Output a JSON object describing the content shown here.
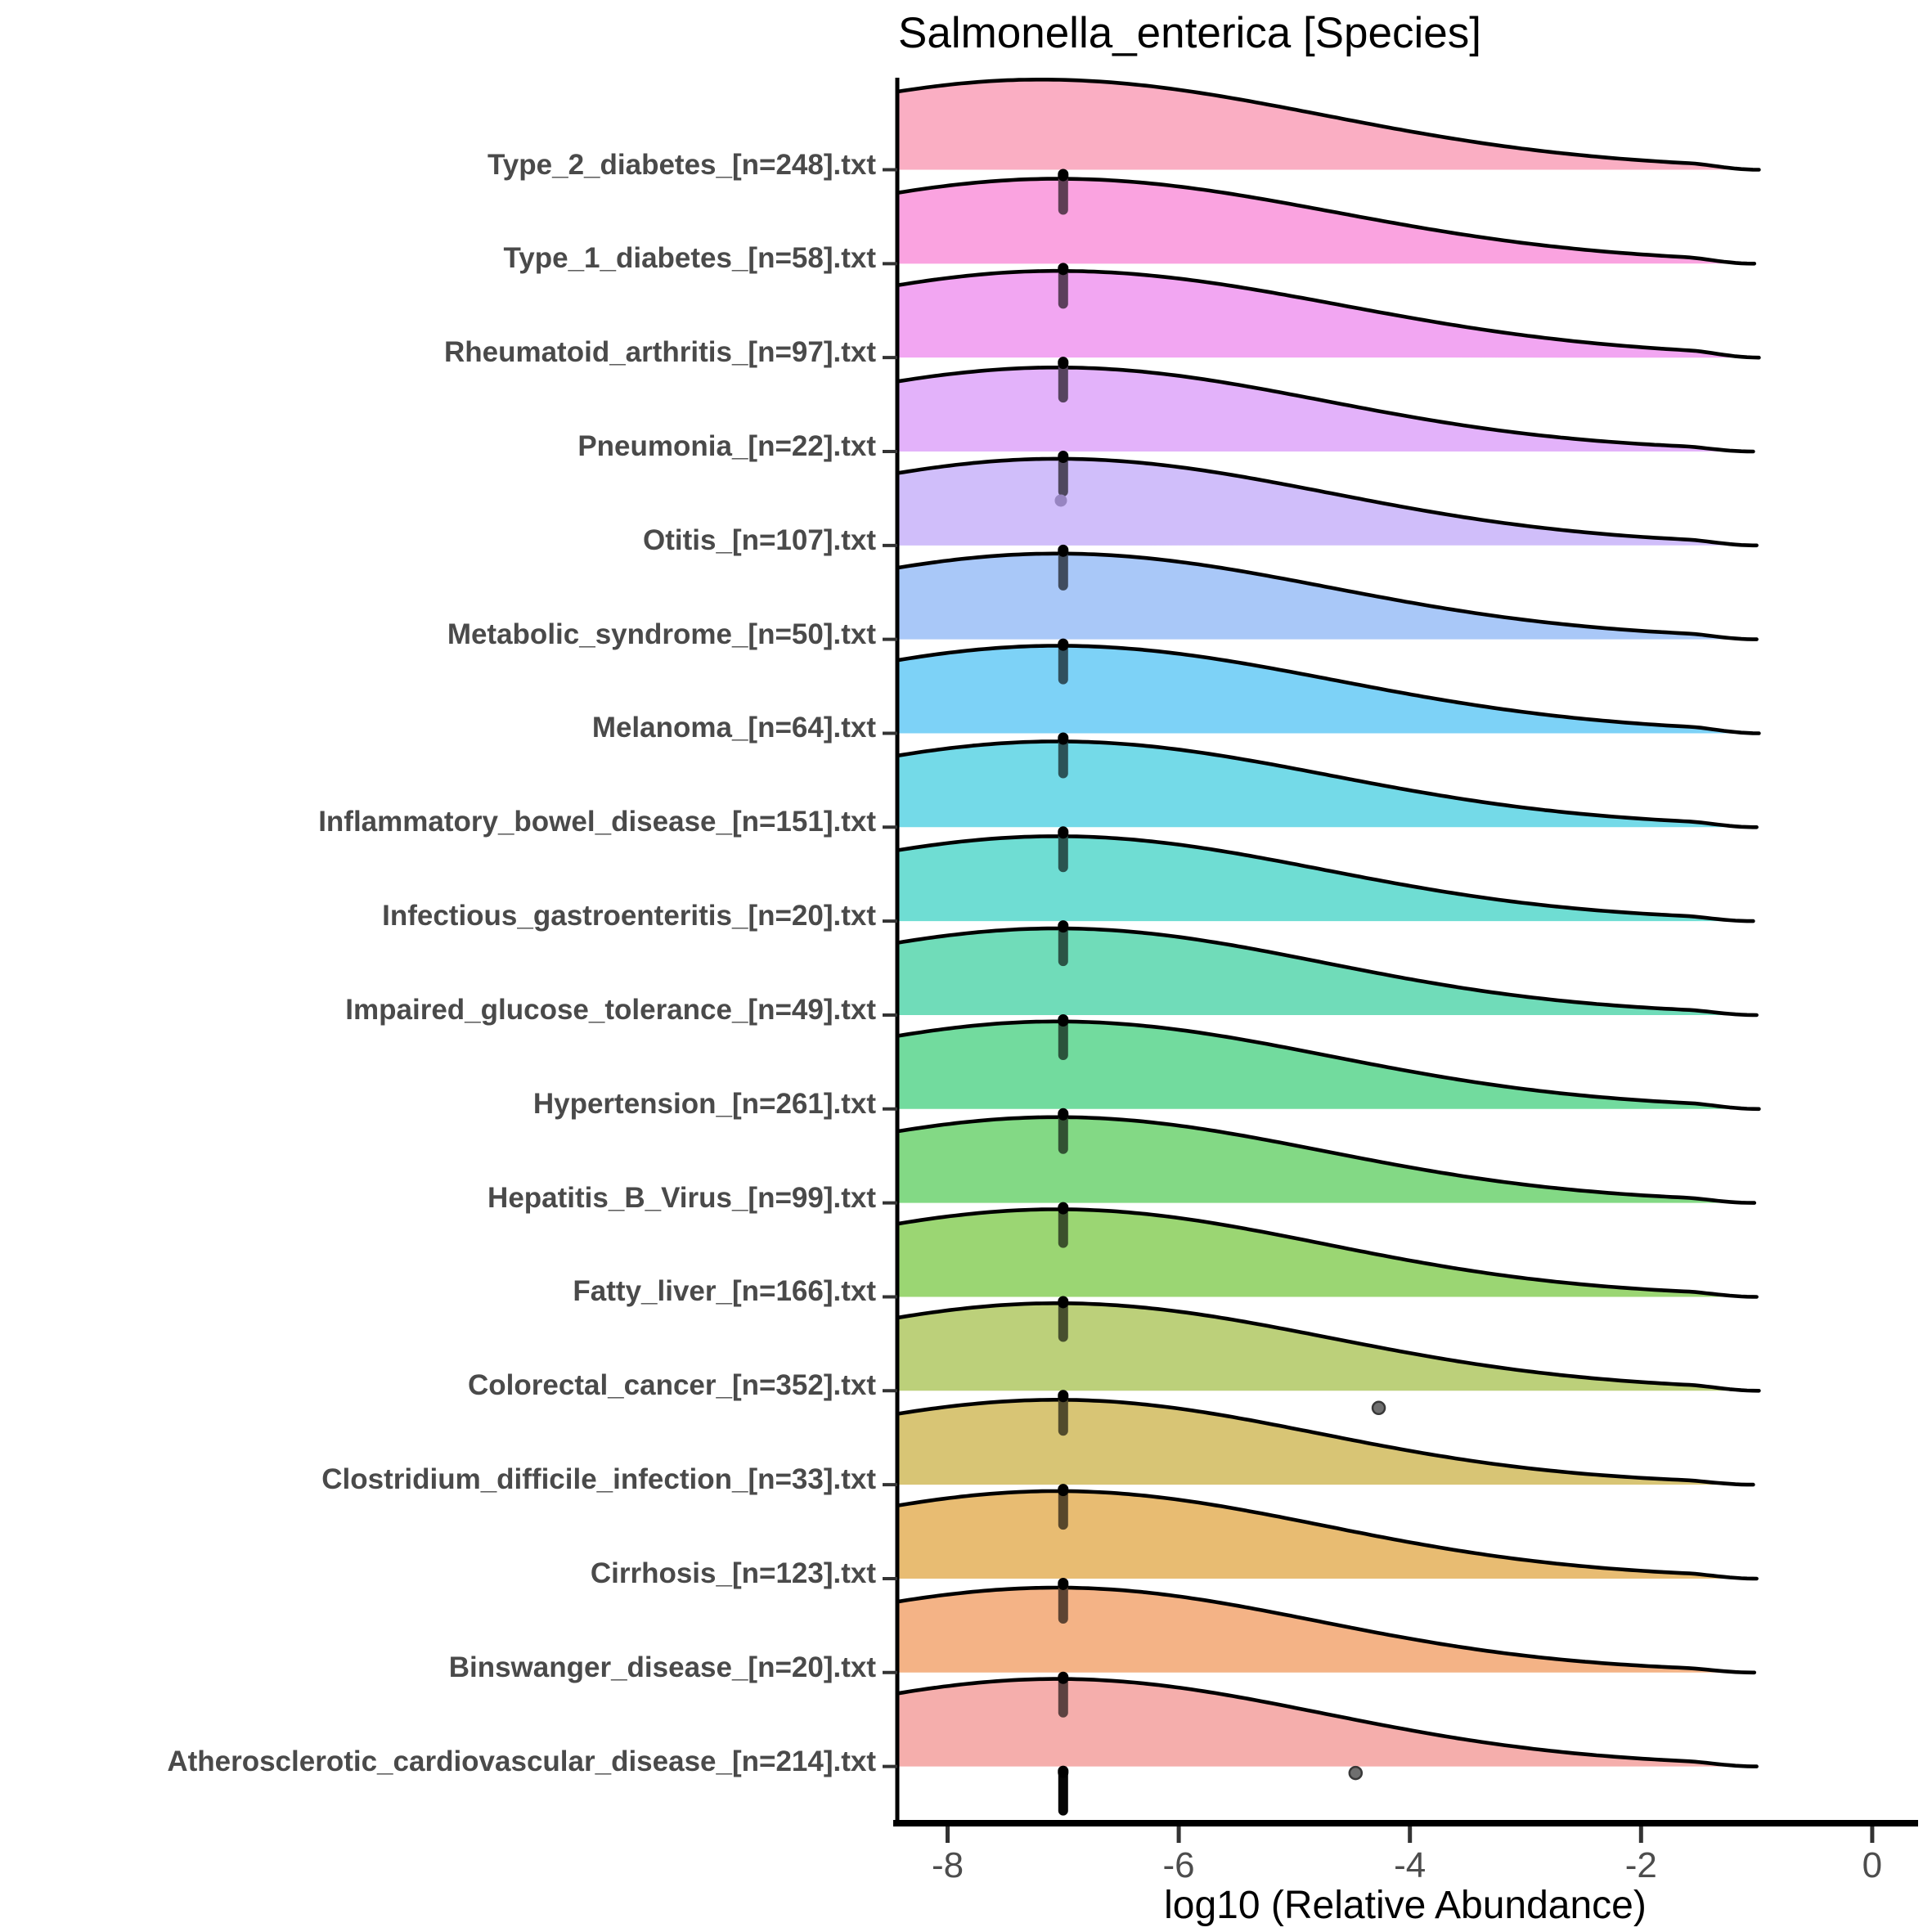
{
  "title": "Salmonella_enterica [Species]",
  "chart_data": {
    "type": "ridgeline",
    "title": "Salmonella_enterica [Species]",
    "xlabel": "log10 (Relative Abundance)",
    "x_ticks": [
      -8,
      -6,
      -4,
      -2,
      0
    ],
    "x_range": [
      -8.43,
      0.32
    ],
    "y_axis": "cohort files (disease_[n=samples].txt)",
    "grid": "off",
    "legend": "none",
    "fill_alpha": 0.6,
    "floor_marker_x": -7,
    "rows": [
      {
        "label": "Type_2_diabetes_[n=248].txt",
        "n": 248,
        "fill": "#F7789B",
        "peak_x": -7.2,
        "sigma_left": 2.3,
        "sigma_right": 2.45,
        "height": 1.03,
        "end_x": -0.98,
        "floor_points": true,
        "outliers": []
      },
      {
        "label": "Type_1_diabetes_[n=58].txt",
        "n": 58,
        "fill": "#F766CB",
        "peak_x": -7.05,
        "sigma_left": 2.3,
        "sigma_right": 2.4,
        "height": 0.97,
        "end_x": -1.02,
        "floor_points": true,
        "outliers": []
      },
      {
        "label": "Rheumatoid_arthritis_[n=97].txt",
        "n": 97,
        "fill": "#E96BE9",
        "peak_x": -7.05,
        "sigma_left": 2.3,
        "sigma_right": 2.45,
        "height": 0.99,
        "end_x": -0.98,
        "floor_points": true,
        "outliers": []
      },
      {
        "label": "Pneumonia_[n=22].txt",
        "n": 22,
        "fill": "#D07FF7",
        "peak_x": -7.05,
        "sigma_left": 2.3,
        "sigma_right": 2.3,
        "height": 0.96,
        "end_x": -1.03,
        "floor_points": true,
        "outliers": [
          {
            "x": -7.02,
            "dy": 60,
            "covered": true
          }
        ]
      },
      {
        "label": "Otitis_[n=107].txt",
        "n": 107,
        "fill": "#B193F7",
        "peak_x": -7.05,
        "sigma_left": 2.3,
        "sigma_right": 2.35,
        "height": 0.99,
        "end_x": -1.0,
        "floor_points": true,
        "outliers": []
      },
      {
        "label": "Metabolic_syndrome_[n=50].txt",
        "n": 50,
        "fill": "#70A3F3",
        "peak_x": -7.05,
        "sigma_left": 2.3,
        "sigma_right": 2.35,
        "height": 0.98,
        "end_x": -1.0,
        "floor_points": true,
        "outliers": []
      },
      {
        "label": "Melanoma_[n=64].txt",
        "n": 64,
        "fill": "#26B4F2",
        "peak_x": -7.05,
        "sigma_left": 2.3,
        "sigma_right": 2.4,
        "height": 1.0,
        "end_x": -0.98,
        "floor_points": true,
        "outliers": []
      },
      {
        "label": "Inflammatory_bowel_disease_[n=151].txt",
        "n": 151,
        "fill": "#17C1D9",
        "peak_x": -7.05,
        "sigma_left": 2.3,
        "sigma_right": 2.35,
        "height": 0.98,
        "end_x": -1.0,
        "floor_points": true,
        "outliers": []
      },
      {
        "label": "Infectious_gastroenteritis_[n=20].txt",
        "n": 20,
        "fill": "#0FC6B6",
        "peak_x": -7.05,
        "sigma_left": 2.3,
        "sigma_right": 2.3,
        "height": 0.97,
        "end_x": -1.03,
        "floor_points": true,
        "outliers": []
      },
      {
        "label": "Impaired_glucose_tolerance_[n=49].txt",
        "n": 49,
        "fill": "#11C58A",
        "peak_x": -7.05,
        "sigma_left": 2.3,
        "sigma_right": 2.3,
        "height": 0.99,
        "end_x": -1.0,
        "floor_points": true,
        "outliers": []
      },
      {
        "label": "Hypertension_[n=261].txt",
        "n": 261,
        "fill": "#14C35D",
        "peak_x": -7.05,
        "sigma_left": 2.3,
        "sigma_right": 2.35,
        "height": 1.0,
        "end_x": -0.98,
        "floor_points": true,
        "outliers": []
      },
      {
        "label": "Hepatitis_B_Virus_[n=99].txt",
        "n": 99,
        "fill": "#30C034",
        "peak_x": -7.05,
        "sigma_left": 2.3,
        "sigma_right": 2.3,
        "height": 0.98,
        "end_x": -1.02,
        "floor_points": true,
        "outliers": []
      },
      {
        "label": "Fatty_liver_[n=166].txt",
        "n": 166,
        "fill": "#58BA15",
        "peak_x": -7.05,
        "sigma_left": 2.3,
        "sigma_right": 2.3,
        "height": 1.0,
        "end_x": -1.0,
        "floor_points": true,
        "outliers": []
      },
      {
        "label": "Colorectal_cancer_[n=352].txt",
        "n": 352,
        "fill": "#8FB121",
        "peak_x": -7.05,
        "sigma_left": 2.3,
        "sigma_right": 2.35,
        "height": 1.0,
        "end_x": -0.98,
        "floor_points": true,
        "outliers": [
          {
            "x": -4.27,
            "dy": 21,
            "covered": false
          }
        ]
      },
      {
        "label": "Clostridium_difficile_infection_[n=33].txt",
        "n": 33,
        "fill": "#BE9E19",
        "peak_x": -7.05,
        "sigma_left": 2.3,
        "sigma_right": 2.25,
        "height": 0.97,
        "end_x": -1.03,
        "floor_points": true,
        "outliers": []
      },
      {
        "label": "Cirrhosis_[n=123].txt",
        "n": 123,
        "fill": "#D98F14",
        "peak_x": -7.05,
        "sigma_left": 2.3,
        "sigma_right": 2.3,
        "height": 1.0,
        "end_x": -1.0,
        "floor_points": true,
        "outliers": []
      },
      {
        "label": "Binswanger_disease_[n=20].txt",
        "n": 20,
        "fill": "#ED8035",
        "peak_x": -7.05,
        "sigma_left": 2.3,
        "sigma_right": 2.25,
        "height": 0.97,
        "end_x": -1.02,
        "floor_points": true,
        "outliers": []
      },
      {
        "label": "Atherosclerotic_cardiovascular_disease_[n=214].txt",
        "n": 214,
        "fill": "#EE7875",
        "peak_x": -7.05,
        "sigma_left": 2.3,
        "sigma_right": 2.3,
        "height": 1.0,
        "end_x": -1.0,
        "floor_points": true,
        "outliers": [
          {
            "x": -4.47,
            "dy": 8,
            "covered": false
          }
        ]
      }
    ],
    "outlier_point_color": "#6F6F6F",
    "outline_color": "#000000",
    "axis_color": "#000000"
  }
}
